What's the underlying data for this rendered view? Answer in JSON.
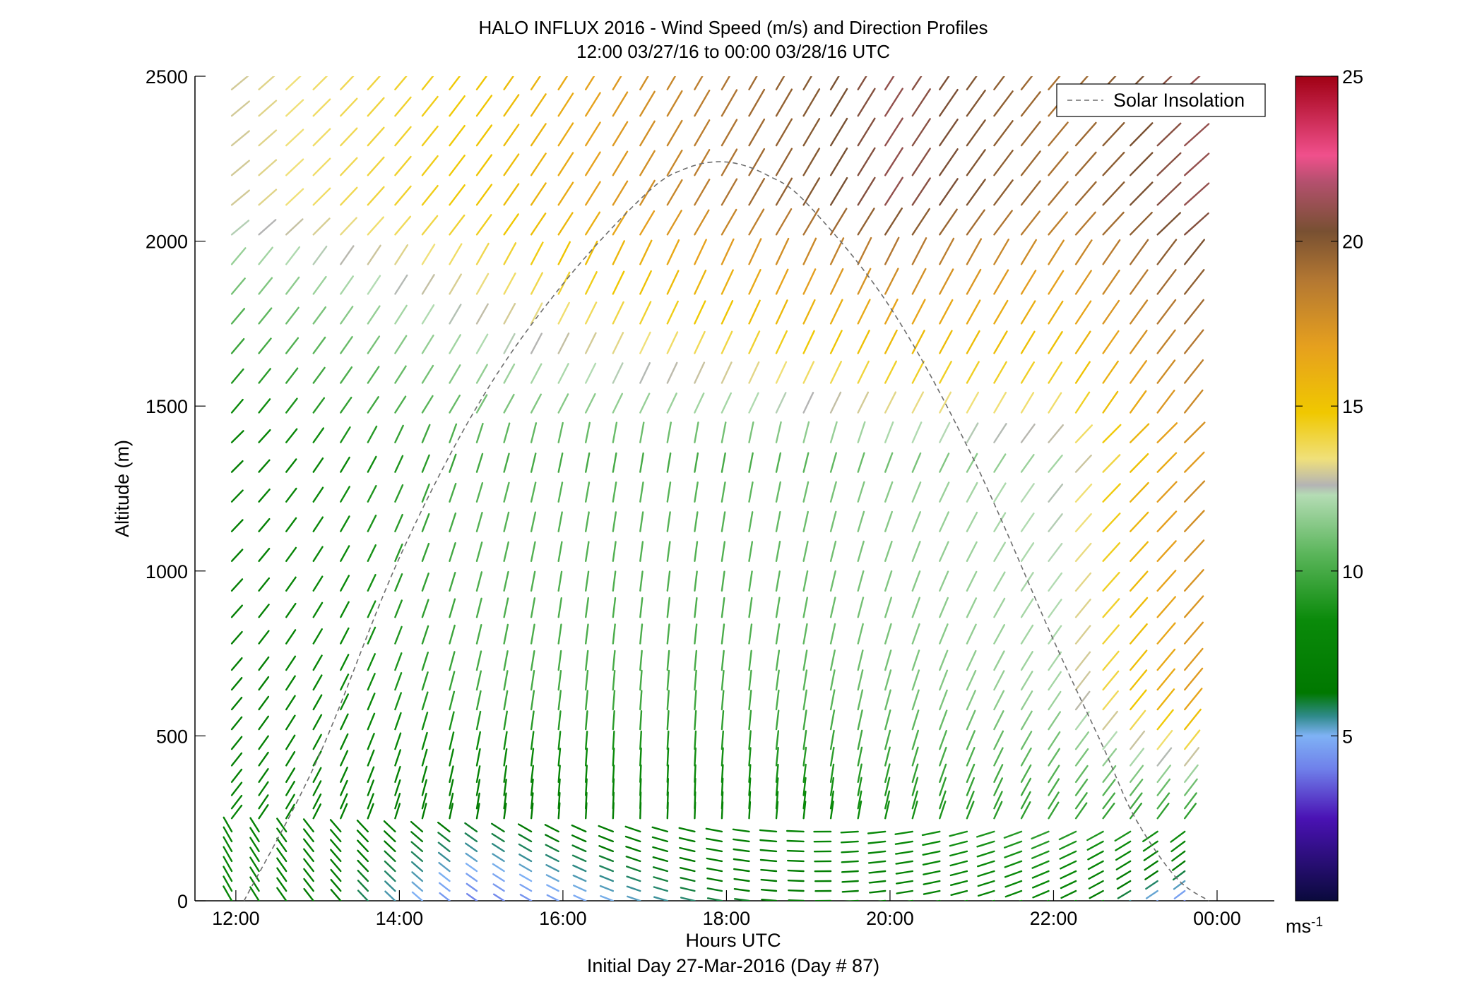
{
  "chart_data": {
    "type": "wind_profile",
    "title": "HALO INFLUX 2016 - Wind Speed (m/s) and Direction Profiles",
    "subtitle": "12:00 03/27/16 to 00:00 03/28/16  UTC",
    "xlabel": "Hours UTC",
    "xlabel2": "Initial Day 27-Mar-2016 (Day # 87)",
    "ylabel": "Altitude (m)",
    "x_ticks": [
      "12:00",
      "14:00",
      "16:00",
      "18:00",
      "20:00",
      "22:00",
      "00:00"
    ],
    "y_ticks": [
      "0",
      "500",
      "1000",
      "1500",
      "2000",
      "2500"
    ],
    "xlim": [
      11.5,
      24.7
    ],
    "ylim": [
      0,
      2500
    ],
    "colorbar": {
      "ticks": [
        "5",
        "10",
        "15",
        "20",
        "25"
      ],
      "unit": "ms-1",
      "range": [
        0,
        25
      ],
      "colors": [
        {
          "v": 0,
          "c": "#0a0a3c"
        },
        {
          "v": 2.5,
          "c": "#4a12b4"
        },
        {
          "v": 4,
          "c": "#6f80ea"
        },
        {
          "v": 5,
          "c": "#7fb2f5"
        },
        {
          "v": 5.6,
          "c": "#2f8a8a"
        },
        {
          "v": 6.3,
          "c": "#007800"
        },
        {
          "v": 8.5,
          "c": "#0a8a0a"
        },
        {
          "v": 10.5,
          "c": "#5ab55a"
        },
        {
          "v": 12.3,
          "c": "#b4dcb4"
        },
        {
          "v": 12.6,
          "c": "#b4b4b4"
        },
        {
          "v": 13.4,
          "c": "#f0e07a"
        },
        {
          "v": 14.8,
          "c": "#f0c800"
        },
        {
          "v": 16.8,
          "c": "#e6a01e"
        },
        {
          "v": 18.8,
          "c": "#b47832"
        },
        {
          "v": 20.3,
          "c": "#785032"
        },
        {
          "v": 21.8,
          "c": "#b4506e"
        },
        {
          "v": 22.6,
          "c": "#f0508c"
        },
        {
          "v": 25,
          "c": "#a00014"
        }
      ]
    },
    "legend": {
      "label": "Solar Insolation",
      "position": "top-right",
      "style": "dashed",
      "color": "#808080"
    },
    "solar_insolation_curve": {
      "hours": [
        12.1,
        13.0,
        14.0,
        15.0,
        16.0,
        17.0,
        17.5,
        18.0,
        18.5,
        19.0,
        20.0,
        21.0,
        22.0,
        22.6,
        23.0,
        23.5,
        23.9
      ],
      "altitude_equiv_m": [
        0,
        430,
        1040,
        1520,
        1870,
        2140,
        2220,
        2240,
        2200,
        2110,
        1800,
        1350,
        790,
        470,
        250,
        70,
        0
      ]
    },
    "wind_profiles": {
      "profile_start_hour": 11.95,
      "profile_step_hours": 0.333,
      "profile_count": 36,
      "altitudes_m": [
        0,
        30,
        60,
        90,
        120,
        150,
        180,
        210,
        250,
        280,
        320,
        360,
        410,
        460,
        520,
        580,
        640,
        700,
        780,
        860,
        940,
        1030,
        1120,
        1210,
        1300,
        1390,
        1480,
        1570,
        1660,
        1750,
        1840,
        1930,
        2020,
        2110,
        2200,
        2290,
        2380,
        2460
      ],
      "speed_by_hour_mps": [
        {
          "hour": 12,
          "low": 8,
          "mid": 7,
          "high": 13
        },
        {
          "hour": 15,
          "low": 4,
          "mid": 10,
          "high": 15
        },
        {
          "hour": 18,
          "low": 6,
          "mid": 10,
          "high": 19
        },
        {
          "hour": 20,
          "low": 7,
          "mid": 11,
          "high": 21
        },
        {
          "hour": 22,
          "low": 8,
          "mid": 12,
          "high": 19
        },
        {
          "hour": 23.5,
          "low": 4,
          "mid": 17,
          "high": 21
        }
      ]
    }
  }
}
